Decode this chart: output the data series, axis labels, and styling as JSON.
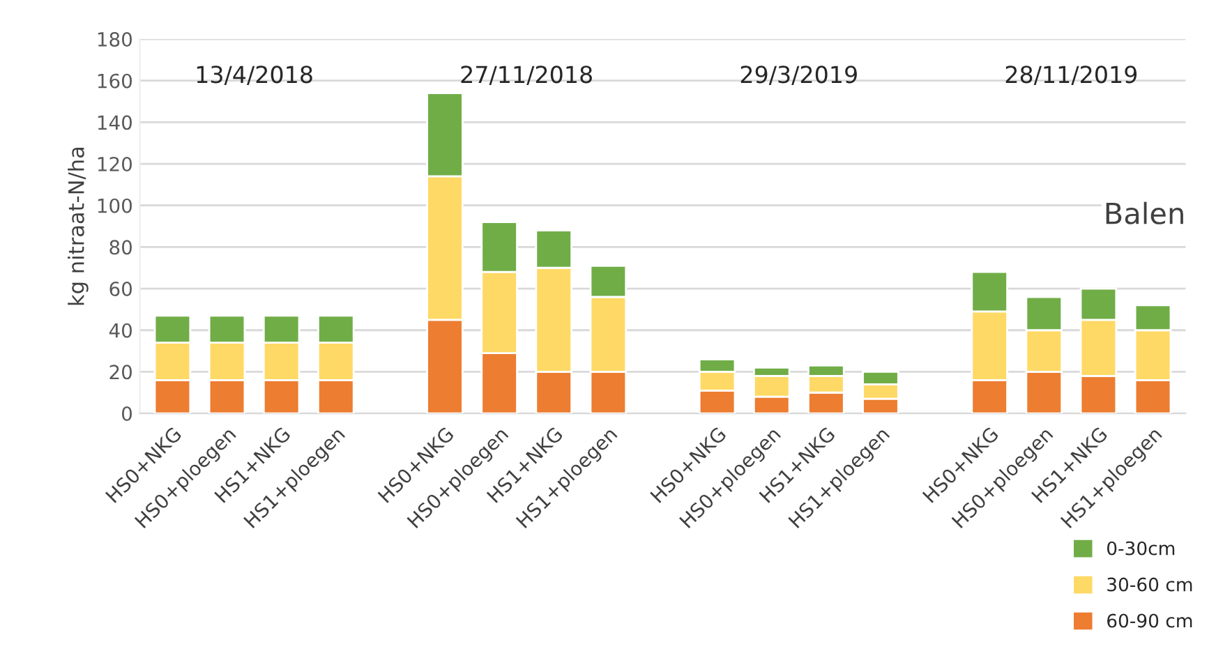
{
  "chart_data": {
    "type": "bar",
    "stacked": true,
    "ylabel": "kg nitraat-N/ha",
    "categories": [
      "HS0+NKG",
      "HS0+ploegen",
      "HS1+NKG",
      "HS1+ploegen",
      null,
      "HS0+NKG",
      "HS0+ploegen",
      "HS1+NKG",
      "HS1+ploegen",
      null,
      "HS0+NKG",
      "HS0+ploegen",
      "HS1+NKG",
      "HS1+ploegen",
      null,
      "HS0+NKG",
      "HS0+ploegen",
      "HS1+NKG",
      "HS1+ploegen"
    ],
    "series": [
      {
        "name": "60-90 cm",
        "color": "#ed7d31",
        "values": [
          16,
          16,
          16,
          16,
          null,
          45,
          29,
          20,
          20,
          null,
          11,
          8,
          10,
          7,
          null,
          16,
          20,
          18,
          16
        ]
      },
      {
        "name": "30-60 cm",
        "color": "#ffd966",
        "values": [
          18,
          18,
          18,
          18,
          null,
          69,
          39,
          50,
          36,
          null,
          9,
          10,
          8,
          7,
          null,
          33,
          20,
          27,
          24
        ]
      },
      {
        "name": "0-30cm",
        "color": "#70ad47",
        "values": [
          13,
          13,
          13,
          13,
          null,
          40,
          24,
          18,
          15,
          null,
          6,
          4,
          5,
          6,
          null,
          19,
          16,
          15,
          12
        ]
      }
    ],
    "ylim": [
      0,
      180
    ],
    "yticks": [
      0,
      20,
      40,
      60,
      80,
      100,
      120,
      140,
      160,
      180
    ],
    "grid": "y",
    "legend": "bottom right",
    "annotations": [
      "13/4/2018",
      "27/11/2018",
      "29/3/2019",
      "28/11/2019",
      "Balen"
    ]
  }
}
